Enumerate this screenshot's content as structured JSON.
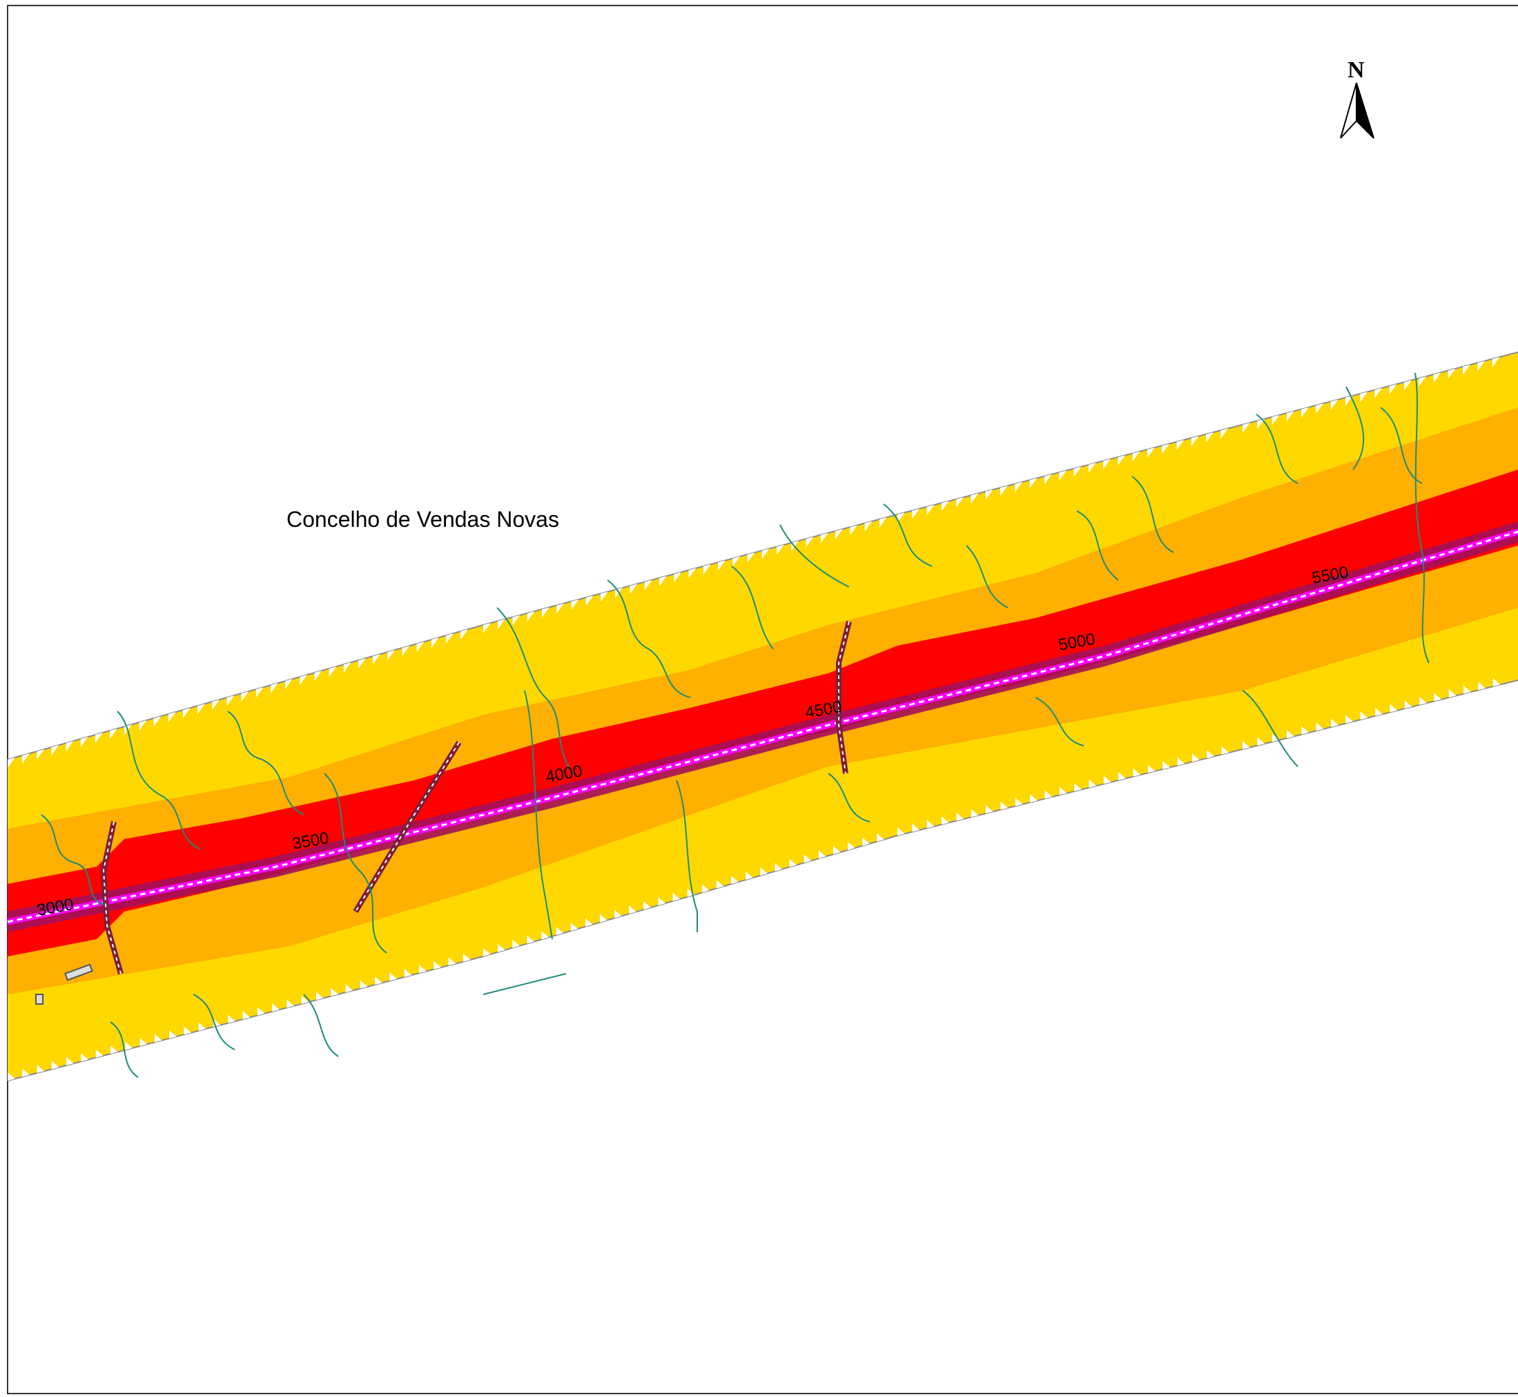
{
  "map": {
    "place_label": "Concelho de Vendas Novas",
    "north_label": "N",
    "chainage_labels": [
      "3000",
      "3500",
      "4000",
      "4500",
      "5000",
      "5500"
    ],
    "zone_colors": {
      "outer": "#FFD800",
      "middle": "#FFB000",
      "inner": "#FF0000",
      "core": "#A3105A",
      "axis": "#FF00FF",
      "contours": "#1C8C7A",
      "boundary": "#8A8A8A"
    }
  }
}
